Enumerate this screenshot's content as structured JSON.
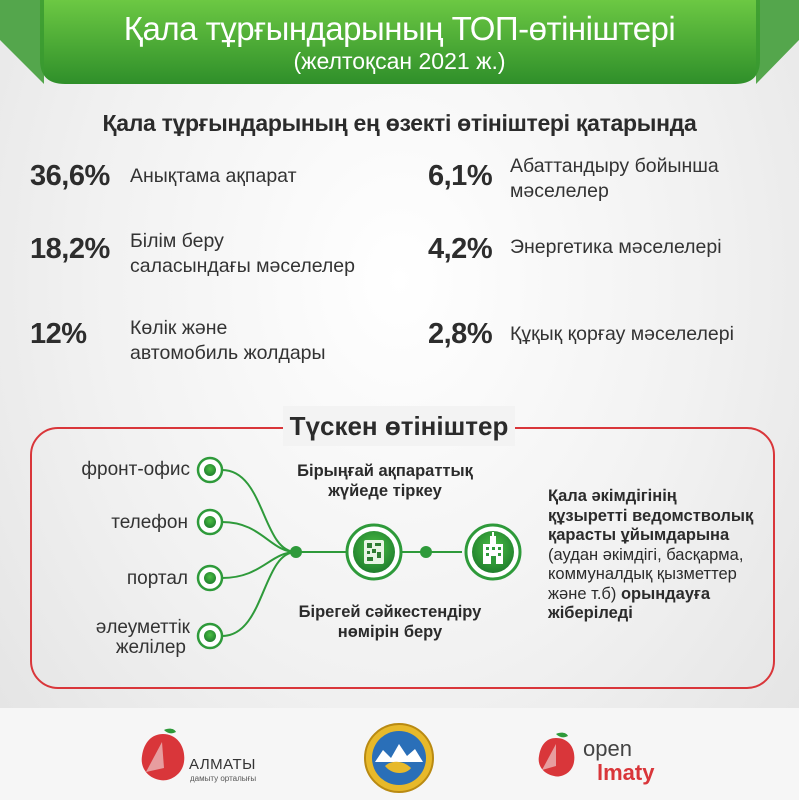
{
  "banner": {
    "title": "Қала тұрғындарының ТОП-өтініштері",
    "subtitle": "(желтоқсан 2021 ж.)",
    "color_light": "#5fbf3a",
    "color_dark": "#2f8f2a"
  },
  "stats_section": {
    "heading": "Қала тұрғындарының ең өзекті өтініштері қатарында",
    "items": [
      {
        "value": "36,6%",
        "label_line1": "Анықтама ақпарат",
        "label_line2": ""
      },
      {
        "value": "6,1%",
        "label_line1": "Абаттандыру бойынша",
        "label_line2": "мәселелер"
      },
      {
        "value": "18,2%",
        "label_line1": "Білім беру",
        "label_line2": "саласындағы мәселелер"
      },
      {
        "value": "4,2%",
        "label_line1": "Энергетика мәселелері",
        "label_line2": ""
      },
      {
        "value": "12%",
        "label_line1": "Көлік және",
        "label_line2": "автомобиль жолдары"
      },
      {
        "value": "2,8%",
        "label_line1": "Құқық қорғау мәселелері",
        "label_line2": ""
      }
    ]
  },
  "flow": {
    "title": "Түскен өтініштер",
    "border_color": "#d9363a",
    "node_color": "#2e9a3a",
    "channels": [
      {
        "line1": "фронт-офис",
        "line2": ""
      },
      {
        "line1": "телефон",
        "line2": ""
      },
      {
        "line1": "портал",
        "line2": ""
      },
      {
        "line1": "әлеуметтік",
        "line2": "желілер"
      }
    ],
    "register_line1": "Бірыңғай ақпараттық",
    "register_line2": "жүйеде тіркеу",
    "number_line1": "Бірегей сәйкестендіру",
    "number_line2": "нөмірін беру",
    "icon_registry": "document-qr-icon",
    "icon_building": "building-icon",
    "dest_bold1": "Қала әкімдігінің",
    "dest_bold2": "құзыретті ведомстволық",
    "dest_bold3": "қарасты ұйымдарына",
    "dest_regular1": "(аудан әкімдігі, басқарма,",
    "dest_regular2": "коммуналдық қызметтер",
    "dest_regular3": "және т.б)",
    "dest_bold4": "орындауға",
    "dest_bold5": "жіберіледі"
  },
  "footer": {
    "almaty_name": "АЛМАТЫ",
    "almaty_sub": "дамыту орталығы",
    "emblem": "almaty-emblem-icon",
    "open_word": "open",
    "imaty_word": "lmaty",
    "accent": "#d9363a"
  }
}
